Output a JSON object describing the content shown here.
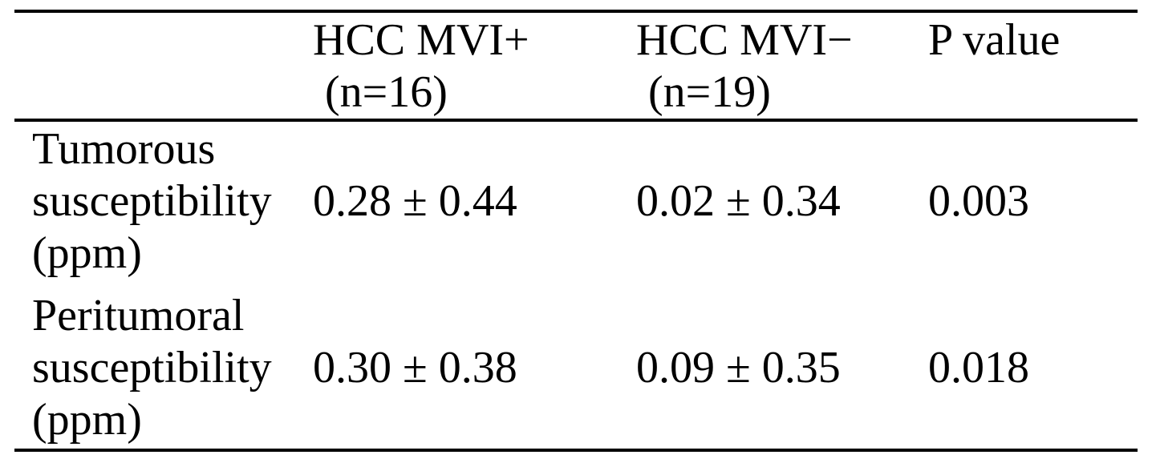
{
  "table": {
    "headers": [
      {
        "line1": "",
        "line2": ""
      },
      {
        "line1": "HCC MVI+",
        "line2": "(n=16)"
      },
      {
        "line1": "HCC MVI−",
        "line2": "(n=19)"
      },
      {
        "line1": "P value",
        "line2": ""
      }
    ],
    "rows": [
      {
        "label": [
          "Tumorous",
          "susceptibility",
          "(ppm)"
        ],
        "mvi_pos": "0.28 ± 0.44",
        "mvi_neg": "0.02 ± 0.34",
        "p_value": "0.003"
      },
      {
        "label": [
          "Peritumoral",
          "susceptibility",
          "(ppm)"
        ],
        "mvi_pos": "0.30 ± 0.38",
        "mvi_neg": "0.09 ± 0.35",
        "p_value": "0.018"
      }
    ]
  }
}
